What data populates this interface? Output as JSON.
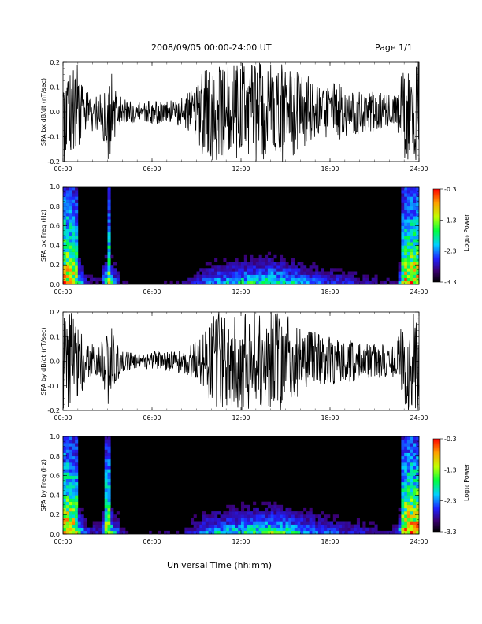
{
  "header": {
    "title": "2008/09/05   00:00-24:00 UT",
    "page": "Page 1/1"
  },
  "footer": {
    "xlabel": "Universal Time (hh:mm)"
  },
  "x_ticks": [
    "00:00",
    "06:00",
    "12:00",
    "18:00",
    "24:00"
  ],
  "colorbar": {
    "label": "Log₁₀ Power",
    "ticks": [
      "-0.3",
      "-1.3",
      "-2.3",
      "-3.3"
    ],
    "range": [
      -3.3,
      -0.3
    ]
  },
  "chart_data": [
    {
      "type": "line",
      "panel": "time-series",
      "ylabel": "SPA bx dB/dt (nT/sec)",
      "xlim": [
        0,
        24
      ],
      "ylim": [
        -0.2,
        0.2
      ],
      "yticks": [
        "0.2",
        "0.1",
        "0.0",
        "-0.1",
        "-0.2"
      ],
      "series": [
        {
          "x": [
            0,
            0.5,
            1,
            1.5,
            2,
            2.5,
            3,
            3.5,
            4,
            4.5,
            5,
            5.5,
            6,
            6.5,
            7,
            7.5,
            8,
            8.5,
            9,
            9.5,
            10,
            10.5,
            11,
            11.5,
            12,
            12.5,
            13,
            13.5,
            14,
            14.5,
            15,
            15.5,
            16,
            16.5,
            17,
            17.5,
            18,
            18.5,
            19,
            19.5,
            20,
            20.5,
            21,
            21.5,
            22,
            22.5,
            23,
            23.5,
            24
          ],
          "amp": [
            0.2,
            0.2,
            0.2,
            0.08,
            0.08,
            0.07,
            0.2,
            0.12,
            0.05,
            0.05,
            0.04,
            0.04,
            0.05,
            0.05,
            0.05,
            0.05,
            0.06,
            0.08,
            0.1,
            0.2,
            0.2,
            0.2,
            0.2,
            0.2,
            0.2,
            0.2,
            0.2,
            0.2,
            0.2,
            0.2,
            0.2,
            0.18,
            0.15,
            0.15,
            0.12,
            0.1,
            0.12,
            0.12,
            0.1,
            0.1,
            0.09,
            0.08,
            0.08,
            0.08,
            0.07,
            0.07,
            0.2,
            0.2,
            0.2
          ]
        }
      ]
    },
    {
      "type": "heatmap",
      "panel": "spectrogram",
      "ylabel": "SPA bx Freq (Hz)",
      "xlim": [
        0,
        24
      ],
      "ylim": [
        0.0,
        1.0
      ],
      "yticks": [
        "1.0",
        "0.8",
        "0.6",
        "0.4",
        "0.2",
        "0.0"
      ],
      "activity": [
        0.9,
        0.9,
        0.7,
        0.25,
        0.2,
        0.15,
        0.8,
        0.4,
        0.15,
        0.12,
        0.1,
        0.1,
        0.12,
        0.12,
        0.12,
        0.12,
        0.15,
        0.2,
        0.25,
        0.35,
        0.4,
        0.45,
        0.45,
        0.5,
        0.55,
        0.55,
        0.6,
        0.6,
        0.65,
        0.6,
        0.55,
        0.5,
        0.45,
        0.4,
        0.35,
        0.3,
        0.3,
        0.3,
        0.28,
        0.25,
        0.22,
        0.2,
        0.18,
        0.18,
        0.16,
        0.16,
        0.85,
        0.9,
        0.9
      ]
    },
    {
      "type": "line",
      "panel": "time-series",
      "ylabel": "SPA by dB/dt (nT/sec)",
      "xlim": [
        0,
        24
      ],
      "ylim": [
        -0.2,
        0.2
      ],
      "yticks": [
        "0.2",
        "0.1",
        "0.0",
        "-0.1",
        "-0.2"
      ],
      "series": [
        {
          "x": [
            0,
            0.5,
            1,
            1.5,
            2,
            2.5,
            3,
            3.5,
            4,
            4.5,
            5,
            5.5,
            6,
            6.5,
            7,
            7.5,
            8,
            8.5,
            9,
            9.5,
            10,
            10.5,
            11,
            11.5,
            12,
            12.5,
            13,
            13.5,
            14,
            14.5,
            15,
            15.5,
            16,
            16.5,
            17,
            17.5,
            18,
            18.5,
            19,
            19.5,
            20,
            20.5,
            21,
            21.5,
            22,
            22.5,
            23,
            23.5,
            24
          ],
          "amp": [
            0.2,
            0.2,
            0.2,
            0.07,
            0.07,
            0.06,
            0.2,
            0.1,
            0.04,
            0.04,
            0.03,
            0.03,
            0.04,
            0.04,
            0.04,
            0.04,
            0.05,
            0.06,
            0.09,
            0.12,
            0.18,
            0.2,
            0.2,
            0.2,
            0.2,
            0.2,
            0.2,
            0.2,
            0.2,
            0.2,
            0.2,
            0.16,
            0.14,
            0.13,
            0.12,
            0.1,
            0.1,
            0.1,
            0.09,
            0.09,
            0.08,
            0.07,
            0.07,
            0.07,
            0.06,
            0.07,
            0.2,
            0.2,
            0.2
          ]
        }
      ]
    },
    {
      "type": "heatmap",
      "panel": "spectrogram",
      "ylabel": "SPA by Freq (Hz)",
      "xlim": [
        0,
        24
      ],
      "ylim": [
        0.0,
        1.0
      ],
      "yticks": [
        "1.0",
        "0.8",
        "0.6",
        "0.4",
        "0.2",
        "0.0"
      ],
      "activity": [
        0.9,
        0.9,
        0.75,
        0.3,
        0.25,
        0.2,
        0.85,
        0.45,
        0.2,
        0.15,
        0.12,
        0.12,
        0.14,
        0.14,
        0.14,
        0.14,
        0.16,
        0.22,
        0.3,
        0.4,
        0.45,
        0.5,
        0.5,
        0.55,
        0.6,
        0.6,
        0.65,
        0.65,
        0.7,
        0.65,
        0.6,
        0.55,
        0.5,
        0.45,
        0.4,
        0.35,
        0.32,
        0.3,
        0.28,
        0.26,
        0.24,
        0.22,
        0.2,
        0.2,
        0.18,
        0.2,
        0.9,
        0.95,
        0.95
      ]
    }
  ]
}
